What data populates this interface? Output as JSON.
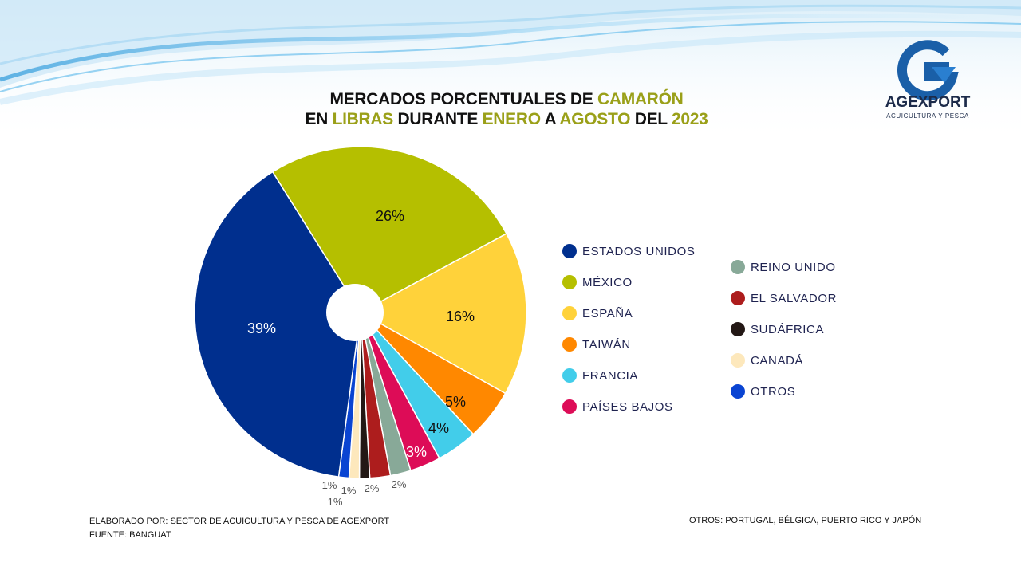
{
  "title": {
    "line1": [
      "MERCADOS PORCENTUALES DE ",
      "CAMARÓN"
    ],
    "line2": [
      "EN ",
      "LIBRAS",
      " DURANTE ",
      "ENERO",
      " A ",
      "AGOSTO",
      " DEL ",
      "2023"
    ]
  },
  "logo": {
    "name": "AGEXPORT",
    "subtitle": "ACUICULTURA Y PESCA"
  },
  "chart_data": {
    "type": "pie",
    "donut_hole": true,
    "title": "MERCADOS PORCENTUALES DE CAMARÓN EN LIBRAS DURANTE ENERO A AGOSTO DEL 2023",
    "legend_position": "right",
    "slices": [
      {
        "label": "ESTADOS UNIDOS",
        "value": 39,
        "display": "39%",
        "color": "#002f8e"
      },
      {
        "label": "MÉXICO",
        "value": 26,
        "display": "26%",
        "color": "#b5bf00"
      },
      {
        "label": "ESPAÑA",
        "value": 16,
        "display": "16%",
        "color": "#ffd23a"
      },
      {
        "label": "TAIWÁN",
        "value": 5,
        "display": "5%",
        "color": "#ff8800"
      },
      {
        "label": "FRANCIA",
        "value": 4,
        "display": "4%",
        "color": "#42cdea"
      },
      {
        "label": "PAÍSES BAJOS",
        "value": 3,
        "display": "3%",
        "color": "#dd0c57"
      },
      {
        "label": "REINO UNIDO",
        "value": 2,
        "display": "2%",
        "color": "#88a998"
      },
      {
        "label": "EL SALVADOR",
        "value": 2,
        "display": "2%",
        "color": "#ad1d1d"
      },
      {
        "label": "SUDÁFRICA",
        "value": 1,
        "display": "1%",
        "color": "#231815"
      },
      {
        "label": "CANADÁ",
        "value": 1,
        "display": "1%",
        "color": "#fde8bc"
      },
      {
        "label": "OTROS",
        "value": 1,
        "display": "1%",
        "color": "#0a44d2"
      }
    ]
  },
  "footer": {
    "credit": "ELABORADO POR: SECTOR DE ACUICULTURA Y PESCA DE AGEXPORT",
    "source": "FUENTE:  BANGUAT",
    "otros_note": "OTROS:  PORTUGAL, BÉLGICA, PUERTO RICO Y JAPÓN"
  }
}
